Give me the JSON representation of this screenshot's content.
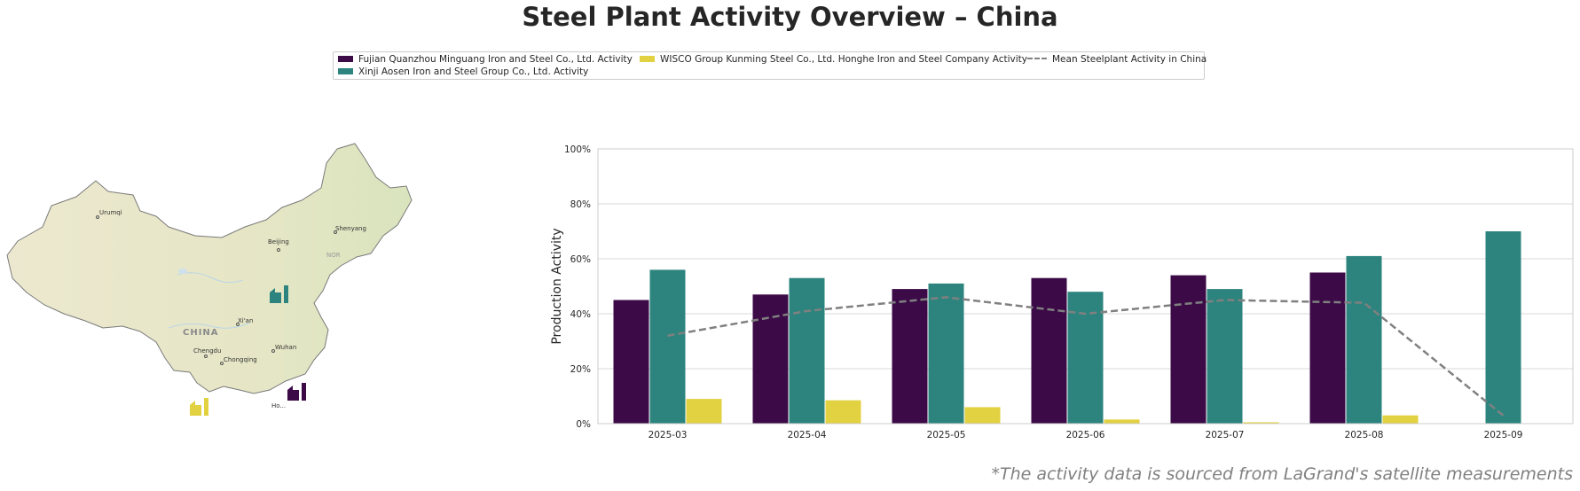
{
  "title": "Steel Plant Activity Overview – China",
  "footnote": "*The activity data is sourced from LaGrand's satellite measurements",
  "legend": {
    "items": [
      {
        "label": "Fujian Quanzhou Minguang Iron and Steel Co., Ltd. Activity",
        "color": "#3b0a47",
        "kind": "bar"
      },
      {
        "label": "Xinji Aosen Iron and Steel Group Co., Ltd. Activity",
        "color": "#2d847e",
        "kind": "bar"
      },
      {
        "label": "WISCO Group Kunming Steel Co., Ltd. Honghe Iron and Steel Company Activity",
        "color": "#e2d140",
        "kind": "bar"
      },
      {
        "label": "Mean Steelplant Activity in China",
        "color": "#808080",
        "kind": "dashed-line"
      }
    ]
  },
  "map": {
    "country_label": "CHINA",
    "cities": [
      "Urumqi",
      "Beijing",
      "Shenyang",
      "Xi'an",
      "Chengdu",
      "Chongqing",
      "Wuhan",
      "Ho..."
    ],
    "other_label": "NOR"
  },
  "chart_data": {
    "type": "bar",
    "ylabel": "Production Activity",
    "xlabel": "",
    "ylim": [
      0,
      100
    ],
    "yticks": [
      "0%",
      "20%",
      "40%",
      "60%",
      "80%",
      "100%"
    ],
    "categories": [
      "2025-03",
      "2025-04",
      "2025-05",
      "2025-06",
      "2025-07",
      "2025-08",
      "2025-09"
    ],
    "series": [
      {
        "name": "Fujian Quanzhou Minguang Iron and Steel Co., Ltd. Activity",
        "color": "#3b0a47",
        "values": [
          45,
          47,
          49,
          53,
          54,
          55,
          null
        ]
      },
      {
        "name": "Xinji Aosen Iron and Steel Group Co., Ltd. Activity",
        "color": "#2d847e",
        "values": [
          56,
          53,
          51,
          48,
          49,
          61,
          70
        ]
      },
      {
        "name": "WISCO Group Kunming Steel Co., Ltd. Honghe Iron and Steel Company Activity",
        "color": "#e2d140",
        "values": [
          9,
          8.5,
          6,
          1.5,
          0.5,
          3,
          null
        ]
      }
    ],
    "line": {
      "name": "Mean Steelplant Activity in China",
      "color": "#808080",
      "values": [
        32,
        41,
        46,
        40,
        45,
        44,
        3
      ]
    },
    "grid": true
  }
}
